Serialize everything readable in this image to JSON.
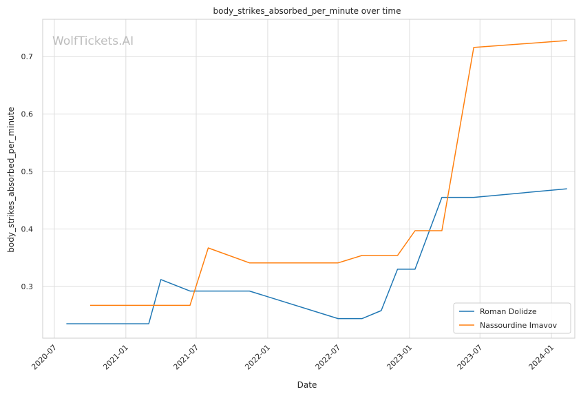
{
  "watermark": "WolfTickets.AI",
  "chart_data": {
    "type": "line",
    "title": "body_strikes_absorbed_per_minute over time",
    "xlabel": "Date",
    "ylabel": "body_strikes_absorbed_per_minute",
    "x_ticks": [
      "2020-07",
      "2021-01",
      "2021-07",
      "2022-01",
      "2022-07",
      "2023-01",
      "2023-07",
      "2024-01"
    ],
    "y_ticks": [
      0.3,
      0.4,
      0.5,
      0.6,
      0.7
    ],
    "xlim": [
      "2020-06-01",
      "2024-03-01"
    ],
    "ylim": [
      0.21,
      0.765
    ],
    "grid": true,
    "legend_position": "lower-right",
    "series": [
      {
        "name": "Roman Dolidze",
        "color": "#1f77b4",
        "points": [
          [
            "2020-08-01",
            0.235
          ],
          [
            "2021-03-01",
            0.235
          ],
          [
            "2021-04-01",
            0.312
          ],
          [
            "2021-06-15",
            0.292
          ],
          [
            "2021-11-15",
            0.292
          ],
          [
            "2022-07-01",
            0.244
          ],
          [
            "2022-09-01",
            0.244
          ],
          [
            "2022-10-20",
            0.258
          ],
          [
            "2022-12-01",
            0.33
          ],
          [
            "2023-01-15",
            0.33
          ],
          [
            "2023-03-25",
            0.455
          ],
          [
            "2023-06-15",
            0.455
          ],
          [
            "2024-02-10",
            0.47
          ]
        ]
      },
      {
        "name": "Nassourdine Imavov",
        "color": "#ff7f0e",
        "points": [
          [
            "2020-10-01",
            0.267
          ],
          [
            "2021-06-15",
            0.267
          ],
          [
            "2021-08-01",
            0.367
          ],
          [
            "2021-11-15",
            0.341
          ],
          [
            "2022-07-01",
            0.341
          ],
          [
            "2022-09-01",
            0.354
          ],
          [
            "2022-12-01",
            0.354
          ],
          [
            "2023-01-15",
            0.397
          ],
          [
            "2023-03-25",
            0.397
          ],
          [
            "2023-06-15",
            0.716
          ],
          [
            "2024-02-10",
            0.728
          ]
        ]
      }
    ]
  }
}
